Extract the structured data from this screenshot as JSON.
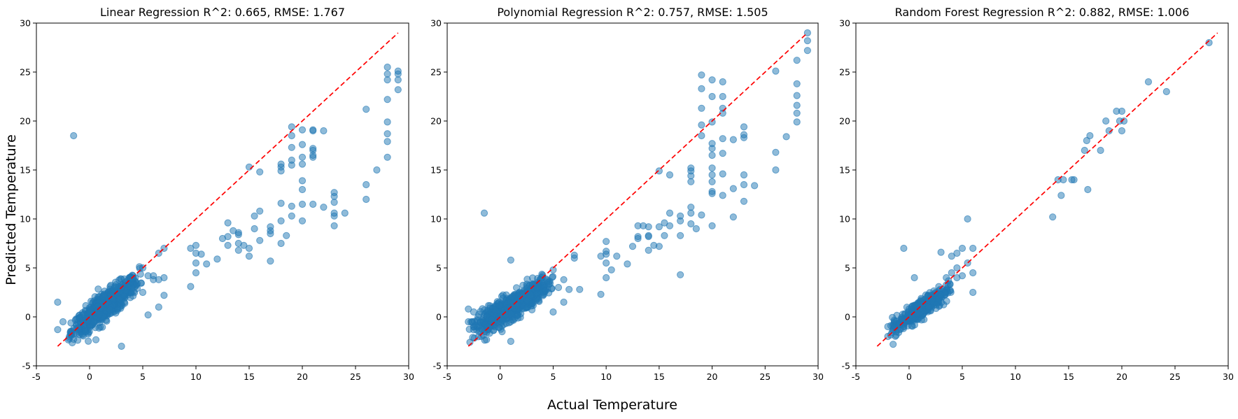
{
  "figure": {
    "xlabel": "Actual Temperature",
    "ylabel": "Predicted Temperature"
  },
  "colors": {
    "points": "#1f77b4",
    "reference_line": "#ff0000"
  },
  "chart_data": [
    {
      "type": "scatter",
      "title": "Linear Regression R^2: 0.665, RMSE: 1.767",
      "xlim": [
        -5,
        30
      ],
      "ylim": [
        -5,
        30
      ],
      "xticks": [
        -5,
        0,
        5,
        10,
        15,
        20,
        25,
        30
      ],
      "yticks": [
        -5,
        0,
        5,
        10,
        15,
        20,
        25,
        30
      ],
      "grid": false,
      "reference_line": {
        "x": [
          -3,
          29
        ],
        "y": [
          -3,
          29
        ],
        "style": "dashed"
      },
      "cluster": {
        "x_range": [
          -2,
          5
        ],
        "y_range": [
          -3.2,
          5.5
        ],
        "description": "dense cloud of points near the origin"
      },
      "points": [
        [
          -1.5,
          18.5
        ],
        [
          -3,
          1.5
        ],
        [
          -3,
          -1.3
        ],
        [
          -2.5,
          -0.5
        ],
        [
          5,
          5
        ],
        [
          5.5,
          4.2
        ],
        [
          6,
          3.8
        ],
        [
          6,
          4.2
        ],
        [
          6.5,
          6.5
        ],
        [
          7,
          7
        ],
        [
          5,
          2.5
        ],
        [
          5.5,
          0.2
        ],
        [
          6.5,
          1
        ],
        [
          7,
          2.2
        ],
        [
          7,
          4
        ],
        [
          6.5,
          3.8
        ],
        [
          3,
          -3
        ],
        [
          9.5,
          3.1
        ],
        [
          9.5,
          7
        ],
        [
          10,
          4.5
        ],
        [
          10,
          5.5
        ],
        [
          10,
          6.5
        ],
        [
          10.5,
          6.4
        ],
        [
          10,
          7.3
        ],
        [
          11,
          5.4
        ],
        [
          12,
          5.9
        ],
        [
          12.5,
          8
        ],
        [
          13,
          7.3
        ],
        [
          13,
          8.2
        ],
        [
          13,
          9.6
        ],
        [
          13.5,
          8.8
        ],
        [
          14,
          6.8
        ],
        [
          14,
          7.5
        ],
        [
          14,
          8.6
        ],
        [
          14,
          8.4
        ],
        [
          14.5,
          7.3
        ],
        [
          15,
          6.2
        ],
        [
          15,
          7
        ],
        [
          15,
          15.3
        ],
        [
          15.5,
          9
        ],
        [
          15.5,
          10.3
        ],
        [
          16,
          10.8
        ],
        [
          16,
          7.8
        ],
        [
          16,
          14.8
        ],
        [
          17,
          5.7
        ],
        [
          17,
          8.5
        ],
        [
          17,
          9.2
        ],
        [
          17,
          8.8
        ],
        [
          18,
          7.5
        ],
        [
          18,
          9.8
        ],
        [
          18,
          11.6
        ],
        [
          18,
          14.9
        ],
        [
          18,
          15.3
        ],
        [
          18,
          15.6
        ],
        [
          18.5,
          8.3
        ],
        [
          19,
          10.3
        ],
        [
          19,
          11.3
        ],
        [
          19,
          15.5
        ],
        [
          19,
          16
        ],
        [
          19,
          17.3
        ],
        [
          19,
          18.5
        ],
        [
          19,
          19.4
        ],
        [
          20,
          9.8
        ],
        [
          20,
          11.5
        ],
        [
          20,
          13
        ],
        [
          20,
          13.9
        ],
        [
          20,
          15.6
        ],
        [
          20,
          16.3
        ],
        [
          20,
          17.6
        ],
        [
          20,
          19.1
        ],
        [
          21,
          11.5
        ],
        [
          21,
          16.3
        ],
        [
          21,
          16.5
        ],
        [
          21,
          17
        ],
        [
          21,
          17.2
        ],
        [
          21,
          19
        ],
        [
          21,
          19.1
        ],
        [
          22,
          11.2
        ],
        [
          22,
          19
        ],
        [
          23,
          9.3
        ],
        [
          23,
          10.3
        ],
        [
          23,
          10.6
        ],
        [
          23,
          11.7
        ],
        [
          23,
          12.3
        ],
        [
          23,
          12.7
        ],
        [
          24,
          10.6
        ],
        [
          26,
          12
        ],
        [
          26,
          13.5
        ],
        [
          26,
          21.2
        ],
        [
          27,
          15
        ],
        [
          28,
          16.3
        ],
        [
          28,
          17.9
        ],
        [
          28,
          18.7
        ],
        [
          28,
          19.9
        ],
        [
          28,
          22.2
        ],
        [
          28,
          24.2
        ],
        [
          28,
          24.8
        ],
        [
          28,
          25.5
        ],
        [
          29,
          23.2
        ],
        [
          29,
          24.2
        ],
        [
          29,
          24.8
        ],
        [
          29,
          25.1
        ]
      ]
    },
    {
      "type": "scatter",
      "title": "Polynomial Regression R^2: 0.757, RMSE: 1.505",
      "xlim": [
        -5,
        30
      ],
      "ylim": [
        -5,
        30
      ],
      "xticks": [
        -5,
        0,
        5,
        10,
        15,
        20,
        25,
        30
      ],
      "yticks": [
        -5,
        0,
        5,
        10,
        15,
        20,
        25,
        30
      ],
      "grid": false,
      "reference_line": {
        "x": [
          -3,
          29
        ],
        "y": [
          -3,
          29
        ],
        "style": "dashed"
      },
      "cluster": {
        "x_range": [
          -3,
          5
        ],
        "y_range": [
          -3,
          5
        ],
        "description": "dense cloud of points near the origin"
      },
      "points": [
        [
          -1.5,
          10.6
        ],
        [
          -3,
          0.8
        ],
        [
          -3,
          -0.5
        ],
        [
          -2.5,
          0.5
        ],
        [
          -2,
          -1.5
        ],
        [
          1,
          5.8
        ],
        [
          1,
          -2.5
        ],
        [
          5,
          4.8
        ],
        [
          5.5,
          3
        ],
        [
          6,
          3.8
        ],
        [
          6,
          1.5
        ],
        [
          6.5,
          2.8
        ],
        [
          7,
          6
        ],
        [
          7,
          6.3
        ],
        [
          7.5,
          2.8
        ],
        [
          5,
          0.5
        ],
        [
          9.5,
          2.3
        ],
        [
          9.5,
          6.2
        ],
        [
          10,
          4
        ],
        [
          10,
          5.5
        ],
        [
          10,
          6.4
        ],
        [
          10,
          6.7
        ],
        [
          10,
          7.7
        ],
        [
          10.5,
          4.8
        ],
        [
          11,
          6.2
        ],
        [
          12,
          5.4
        ],
        [
          12.5,
          7.2
        ],
        [
          13,
          8
        ],
        [
          13,
          8.2
        ],
        [
          13,
          9.3
        ],
        [
          13.5,
          9.3
        ],
        [
          14,
          6.8
        ],
        [
          14,
          8.2
        ],
        [
          14,
          8.3
        ],
        [
          14,
          9.2
        ],
        [
          14.5,
          7.3
        ],
        [
          15,
          7.2
        ],
        [
          15,
          9.2
        ],
        [
          15,
          14.9
        ],
        [
          15.5,
          8.3
        ],
        [
          15.5,
          9.6
        ],
        [
          16,
          10.6
        ],
        [
          16,
          9.3
        ],
        [
          16,
          14.5
        ],
        [
          17,
          4.3
        ],
        [
          17,
          8.3
        ],
        [
          17,
          9.8
        ],
        [
          17,
          10.3
        ],
        [
          18,
          9.5
        ],
        [
          18,
          10.6
        ],
        [
          18,
          11.2
        ],
        [
          18,
          13.8
        ],
        [
          18,
          14.4
        ],
        [
          18,
          14.9
        ],
        [
          18,
          15.2
        ],
        [
          18.5,
          9
        ],
        [
          19,
          10.4
        ],
        [
          19,
          18.5
        ],
        [
          19,
          19.6
        ],
        [
          19,
          21.3
        ],
        [
          19,
          23.3
        ],
        [
          19,
          24.7
        ],
        [
          20,
          9.3
        ],
        [
          20,
          12.6
        ],
        [
          20,
          12.8
        ],
        [
          20,
          13.8
        ],
        [
          20,
          14.5
        ],
        [
          20,
          15.2
        ],
        [
          20,
          16.5
        ],
        [
          20,
          17.2
        ],
        [
          20,
          17.7
        ],
        [
          20,
          19.9
        ],
        [
          20,
          22.5
        ],
        [
          20,
          24.2
        ],
        [
          21,
          12.4
        ],
        [
          21,
          14.6
        ],
        [
          21,
          16.7
        ],
        [
          21,
          18.2
        ],
        [
          21,
          20.8
        ],
        [
          21,
          21.3
        ],
        [
          21,
          22.5
        ],
        [
          21,
          24
        ],
        [
          22,
          10.2
        ],
        [
          22,
          13.1
        ],
        [
          22,
          18.1
        ],
        [
          23,
          11.8
        ],
        [
          23,
          13.5
        ],
        [
          23,
          14.5
        ],
        [
          23,
          18.3
        ],
        [
          23,
          18.6
        ],
        [
          23,
          19.4
        ],
        [
          24,
          13.4
        ],
        [
          26,
          15
        ],
        [
          26,
          16.8
        ],
        [
          26,
          25.1
        ],
        [
          27,
          18.4
        ],
        [
          28,
          19.9
        ],
        [
          28,
          20.8
        ],
        [
          28,
          21.6
        ],
        [
          28,
          22.6
        ],
        [
          28,
          23.8
        ],
        [
          28,
          26.2
        ],
        [
          29,
          27.2
        ],
        [
          29,
          28.2
        ],
        [
          29,
          29
        ]
      ]
    },
    {
      "type": "scatter",
      "title": "Random Forest Regression R^2: 0.882, RMSE: 1.006",
      "xlim": [
        -5,
        30
      ],
      "ylim": [
        -5,
        30
      ],
      "xticks": [
        -5,
        0,
        5,
        10,
        15,
        20,
        25,
        30
      ],
      "yticks": [
        -5,
        0,
        5,
        10,
        15,
        20,
        25,
        30
      ],
      "grid": false,
      "reference_line": {
        "x": [
          -3,
          29
        ],
        "y": [
          -3,
          29
        ],
        "style": "dashed"
      },
      "cluster": {
        "x_range": [
          -2,
          4
        ],
        "y_range": [
          -2.5,
          4
        ],
        "description": "dense cloud of points near the origin"
      },
      "points": [
        [
          -2,
          -2
        ],
        [
          -1.5,
          -2.8
        ],
        [
          -2,
          -1
        ],
        [
          -0.5,
          7
        ],
        [
          0.5,
          4
        ],
        [
          3,
          6.6
        ],
        [
          3.5,
          4
        ],
        [
          4,
          4.5
        ],
        [
          4,
          6.2
        ],
        [
          4.5,
          4
        ],
        [
          4.5,
          5
        ],
        [
          4.5,
          6.5
        ],
        [
          5,
          4.2
        ],
        [
          5,
          7
        ],
        [
          5.5,
          10
        ],
        [
          6,
          7
        ],
        [
          6,
          2.5
        ],
        [
          6,
          4.5
        ],
        [
          5.5,
          5.5
        ],
        [
          13.5,
          10.2
        ],
        [
          14,
          14
        ],
        [
          14.3,
          12.4
        ],
        [
          14.5,
          14
        ],
        [
          15.3,
          14
        ],
        [
          15.5,
          14
        ],
        [
          16.5,
          17
        ],
        [
          16.7,
          18
        ],
        [
          16.8,
          13
        ],
        [
          17,
          18.5
        ],
        [
          18,
          17
        ],
        [
          18.5,
          20
        ],
        [
          18.8,
          19
        ],
        [
          19.5,
          21
        ],
        [
          19.8,
          20
        ],
        [
          20,
          21
        ],
        [
          20,
          19
        ],
        [
          20.2,
          20
        ],
        [
          22.5,
          24
        ],
        [
          24.2,
          23
        ],
        [
          28.2,
          28
        ]
      ]
    }
  ]
}
